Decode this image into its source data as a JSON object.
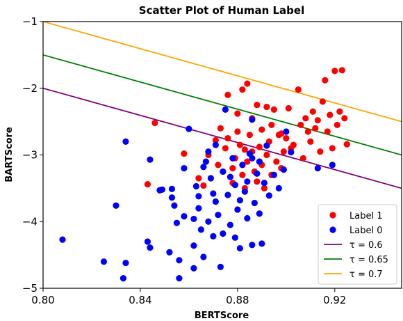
{
  "chart_data": {
    "type": "scatter",
    "title": "Scatter Plot of Human Label",
    "xlabel": "BERTScore",
    "ylabel": "BARTScore",
    "xlim": [
      0.8,
      0.9475
    ],
    "ylim": [
      -5,
      -1
    ],
    "x_ticks": [
      0.8,
      0.84,
      0.88,
      0.92
    ],
    "x_tick_labels": [
      "0.80",
      "0.84",
      "0.88",
      "0.92"
    ],
    "y_ticks": [
      -5,
      -4,
      -3,
      -2,
      -1
    ],
    "y_tick_labels": [
      "−5",
      "−4",
      "−3",
      "−2",
      "−1"
    ],
    "grid": false,
    "legend_position": "lower-right",
    "colors": {
      "label1": "#ff0000",
      "label0": "#0000ff",
      "tau06": "#800080",
      "tau065": "#008000",
      "tau07": "#ffa500"
    },
    "legend": [
      {
        "label": "Label 1",
        "kind": "marker",
        "color": "#ff0000"
      },
      {
        "label": "Label 0",
        "kind": "marker",
        "color": "#0000ff"
      },
      {
        "label": "τ = 0.6",
        "kind": "line",
        "color": "#800080"
      },
      {
        "label": "τ = 0.65",
        "kind": "line",
        "color": "#008000"
      },
      {
        "label": "τ = 0.7",
        "kind": "line",
        "color": "#ffa500"
      }
    ],
    "lines": [
      {
        "name": "τ = 0.6",
        "color": "#800080",
        "x": [
          0.8,
          0.9475
        ],
        "y": [
          -2.0,
          -3.5
        ]
      },
      {
        "name": "τ = 0.65",
        "color": "#008000",
        "x": [
          0.8,
          0.9475
        ],
        "y": [
          -1.5,
          -3.0
        ]
      },
      {
        "name": "τ = 0.7",
        "color": "#ffa500",
        "x": [
          0.8,
          0.9475
        ],
        "y": [
          -1.0,
          -2.5
        ]
      }
    ],
    "series": [
      {
        "name": "Label 1",
        "color": "#ff0000",
        "points": [
          [
            0.846,
            -2.52
          ],
          [
            0.843,
            -3.44
          ],
          [
            0.858,
            -2.98
          ],
          [
            0.864,
            -3.35
          ],
          [
            0.866,
            -3.46
          ],
          [
            0.868,
            -3.0
          ],
          [
            0.871,
            -2.78
          ],
          [
            0.873,
            -2.6
          ],
          [
            0.875,
            -2.9
          ],
          [
            0.876,
            -2.75
          ],
          [
            0.878,
            -3.2
          ],
          [
            0.879,
            -3.05
          ],
          [
            0.88,
            -2.65
          ],
          [
            0.881,
            -2.85
          ],
          [
            0.882,
            -3.3
          ],
          [
            0.883,
            -2.92
          ],
          [
            0.884,
            -3.1
          ],
          [
            0.885,
            -2.7
          ],
          [
            0.886,
            -2.95
          ],
          [
            0.887,
            -3.25
          ],
          [
            0.888,
            -3.4
          ],
          [
            0.889,
            -2.88
          ],
          [
            0.89,
            -3.15
          ],
          [
            0.891,
            -3.5
          ],
          [
            0.892,
            -3.0
          ],
          [
            0.893,
            -2.8
          ],
          [
            0.894,
            -3.3
          ],
          [
            0.895,
            -2.32
          ],
          [
            0.896,
            -3.1
          ],
          [
            0.897,
            -2.7
          ],
          [
            0.898,
            -3.2
          ],
          [
            0.899,
            -2.95
          ],
          [
            0.9,
            -2.75
          ],
          [
            0.901,
            -2.3
          ],
          [
            0.903,
            -2.85
          ],
          [
            0.905,
            -2.02
          ],
          [
            0.906,
            -2.55
          ],
          [
            0.907,
            -3.05
          ],
          [
            0.908,
            -2.45
          ],
          [
            0.909,
            -2.65
          ],
          [
            0.91,
            -2.8
          ],
          [
            0.911,
            -2.35
          ],
          [
            0.912,
            -2.6
          ],
          [
            0.913,
            -2.48
          ],
          [
            0.914,
            -2.95
          ],
          [
            0.915,
            -2.2
          ],
          [
            0.916,
            -1.88
          ],
          [
            0.917,
            -2.65
          ],
          [
            0.918,
            -2.4
          ],
          [
            0.919,
            -2.9
          ],
          [
            0.92,
            -1.74
          ],
          [
            0.921,
            -2.55
          ],
          [
            0.922,
            -2.35
          ],
          [
            0.923,
            -1.73
          ],
          [
            0.924,
            -2.45
          ],
          [
            0.925,
            -2.84
          ],
          [
            0.884,
            -1.93
          ],
          [
            0.882,
            -2.02
          ],
          [
            0.888,
            -2.25
          ],
          [
            0.892,
            -2.28
          ],
          [
            0.876,
            -2.1
          ],
          [
            0.88,
            -2.38
          ],
          [
            0.886,
            -2.45
          ],
          [
            0.89,
            -2.62
          ],
          [
            0.872,
            -3.15
          ],
          [
            0.878,
            -3.42
          ],
          [
            0.883,
            -3.5
          ],
          [
            0.894,
            -2.55
          ],
          [
            0.898,
            -2.68
          ],
          [
            0.902,
            -2.9
          ]
        ]
      },
      {
        "name": "Label 0",
        "color": "#0000ff",
        "points": [
          [
            0.808,
            -4.27
          ],
          [
            0.825,
            -4.6
          ],
          [
            0.83,
            -3.76
          ],
          [
            0.833,
            -4.85
          ],
          [
            0.834,
            -4.62
          ],
          [
            0.834,
            -2.8
          ],
          [
            0.843,
            -4.3
          ],
          [
            0.844,
            -4.39
          ],
          [
            0.844,
            -3.07
          ],
          [
            0.849,
            -3.52
          ],
          [
            0.852,
            -4.46
          ],
          [
            0.853,
            -3.51
          ],
          [
            0.853,
            -3.64
          ],
          [
            0.854,
            -3.76
          ],
          [
            0.855,
            -4.02
          ],
          [
            0.856,
            -4.85
          ],
          [
            0.858,
            -3.2
          ],
          [
            0.86,
            -2.61
          ],
          [
            0.862,
            -3.96
          ],
          [
            0.862,
            -4.36
          ],
          [
            0.863,
            -3.47
          ],
          [
            0.864,
            -3.62
          ],
          [
            0.865,
            -4.12
          ],
          [
            0.866,
            -4.53
          ],
          [
            0.867,
            -3.1
          ],
          [
            0.868,
            -2.95
          ],
          [
            0.869,
            -3.35
          ],
          [
            0.87,
            -4.22
          ],
          [
            0.871,
            -3.7
          ],
          [
            0.872,
            -3.9
          ],
          [
            0.873,
            -4.68
          ],
          [
            0.874,
            -3.25
          ],
          [
            0.875,
            -2.32
          ],
          [
            0.876,
            -3.6
          ],
          [
            0.877,
            -4.05
          ],
          [
            0.878,
            -3.05
          ],
          [
            0.879,
            -3.45
          ],
          [
            0.88,
            -3.82
          ],
          [
            0.881,
            -4.4
          ],
          [
            0.882,
            -3.15
          ],
          [
            0.883,
            -3.55
          ],
          [
            0.884,
            -3.95
          ],
          [
            0.885,
            -2.98
          ],
          [
            0.886,
            -4.35
          ],
          [
            0.887,
            -3.72
          ],
          [
            0.888,
            -3.28
          ],
          [
            0.889,
            -3.88
          ],
          [
            0.89,
            -4.33
          ],
          [
            0.891,
            -3.42
          ],
          [
            0.892,
            -2.86
          ],
          [
            0.893,
            -3.61
          ],
          [
            0.895,
            -3.3
          ],
          [
            0.897,
            -3.5
          ],
          [
            0.899,
            -3.22
          ],
          [
            0.9,
            -2.65
          ],
          [
            0.902,
            -2.96
          ],
          [
            0.919,
            -3.15
          ],
          [
            0.864,
            -3.8
          ],
          [
            0.868,
            -4.0
          ],
          [
            0.87,
            -3.58
          ],
          [
            0.874,
            -4.18
          ],
          [
            0.877,
            -3.33
          ],
          [
            0.879,
            -4.24
          ],
          [
            0.881,
            -3.68
          ],
          [
            0.884,
            -3.4
          ],
          [
            0.886,
            -2.47
          ],
          [
            0.871,
            -2.85
          ],
          [
            0.866,
            -3.18
          ],
          [
            0.889,
            -3.1
          ],
          [
            0.913,
            -3.2
          ],
          [
            0.856,
            -4.58
          ],
          [
            0.862,
            -4.7
          ],
          [
            0.858,
            -3.92
          ],
          [
            0.848,
            -3.53
          ],
          [
            0.886,
            -3.05
          ]
        ]
      }
    ]
  }
}
